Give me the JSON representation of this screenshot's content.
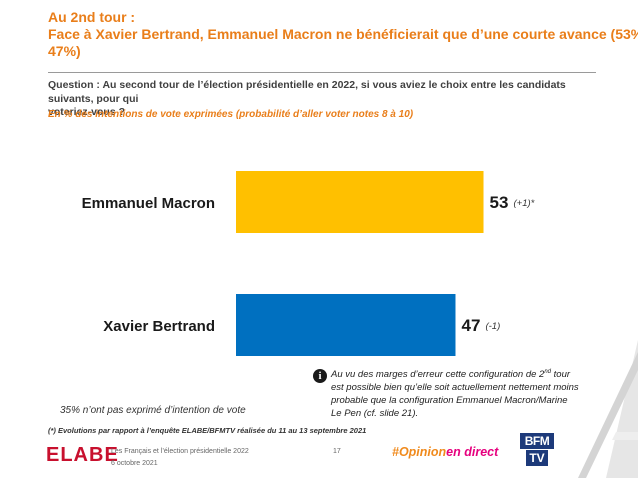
{
  "header": {
    "title_line1": "Au 2nd tour :",
    "title_line2": "Face à Xavier Bertrand, Emmanuel Macron ne bénéficierait que d’une courte avance (53%-",
    "title_line3": "47%)",
    "question_line1": "Question : Au second tour de l’élection présidentielle en 2022, si vous aviez le choix entre les candidats suivants, pour qui",
    "question_line2": "voteriez-vous ?",
    "subtitle": "En % des intentions de vote exprimées (probabilité d’aller voter notes 8 à 10)"
  },
  "chart_data": {
    "type": "bar",
    "orientation": "horizontal",
    "categories": [
      "Emmanuel Macron",
      "Xavier Bertrand"
    ],
    "values": [
      53,
      47
    ],
    "changes": [
      "(+1)*",
      "(-1)"
    ],
    "colors": [
      "#FFC000",
      "#0070C0"
    ],
    "xlim": [
      0,
      100
    ],
    "title": "",
    "xlabel": "",
    "ylabel": "",
    "grid": false,
    "legend": "none"
  },
  "info_note": {
    "line1_pre": "Au vu des marges d’erreur cette configuration de 2",
    "line1_sup": "nd",
    "line1_post": " tour",
    "line2": "est possible bien qu’elle soit actuellement nettement moins",
    "line3": "probable que la configuration Emmanuel Macron/Marine",
    "line4": "Le Pen (cf. slide 21)."
  },
  "abstention_note": "35% n’ont pas exprimé d’intention de vote",
  "footnote": "(*) Evolutions par rapport à l’enquête ELABE/BFMTV réalisée du 11 au 13 septembre 2021",
  "footer": {
    "logo_text": "ELABE",
    "study": "Les Français et l’élection présidentielle 2022",
    "date": "6 octobre 2021",
    "page_number": "17",
    "hashtag_opinion": "#Opinion",
    "hashtag_rest": "en direct",
    "bfm_top": "BFM",
    "bfm_bottom": "TV"
  },
  "colors": {
    "accent_orange": "#E97E1A",
    "macron_bar": "#FFC000",
    "bertrand_bar": "#0070C0",
    "hashtag_orange": "#F08A1C",
    "hashtag_pink": "#E6007E",
    "elabe_red": "#C8102E",
    "bfm_blue": "#1D3A7A"
  }
}
